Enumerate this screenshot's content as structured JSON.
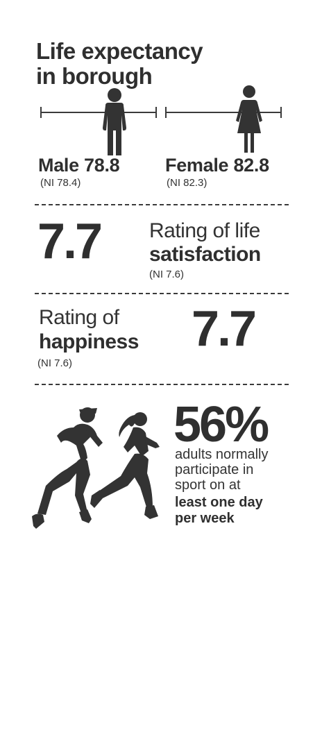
{
  "title": {
    "line1": "Life expectancy",
    "line2": "in borough"
  },
  "life_expectancy": {
    "male": {
      "label": "Male 78.8",
      "ni": "(NI 78.4)",
      "icon": "male-person-icon"
    },
    "female": {
      "label": "Female 82.8",
      "ni": "(NI 82.3)",
      "icon": "female-person-icon"
    }
  },
  "life_satisfaction": {
    "value": "7.7",
    "line1": "Rating of life",
    "line2": "satisfaction",
    "ni": "(NI 7.6)"
  },
  "happiness": {
    "value": "7.7",
    "line1": "Rating of",
    "line2": "happiness",
    "ni": "(NI 7.6)"
  },
  "sport": {
    "percent": "56%",
    "line1": "adults normally",
    "line2": "participate in",
    "line3": "sport on at",
    "line4": "least one day",
    "line5": "per week",
    "icon": "runners-icon"
  },
  "colors": {
    "text": "#2f2f2f",
    "icon": "#333333"
  }
}
